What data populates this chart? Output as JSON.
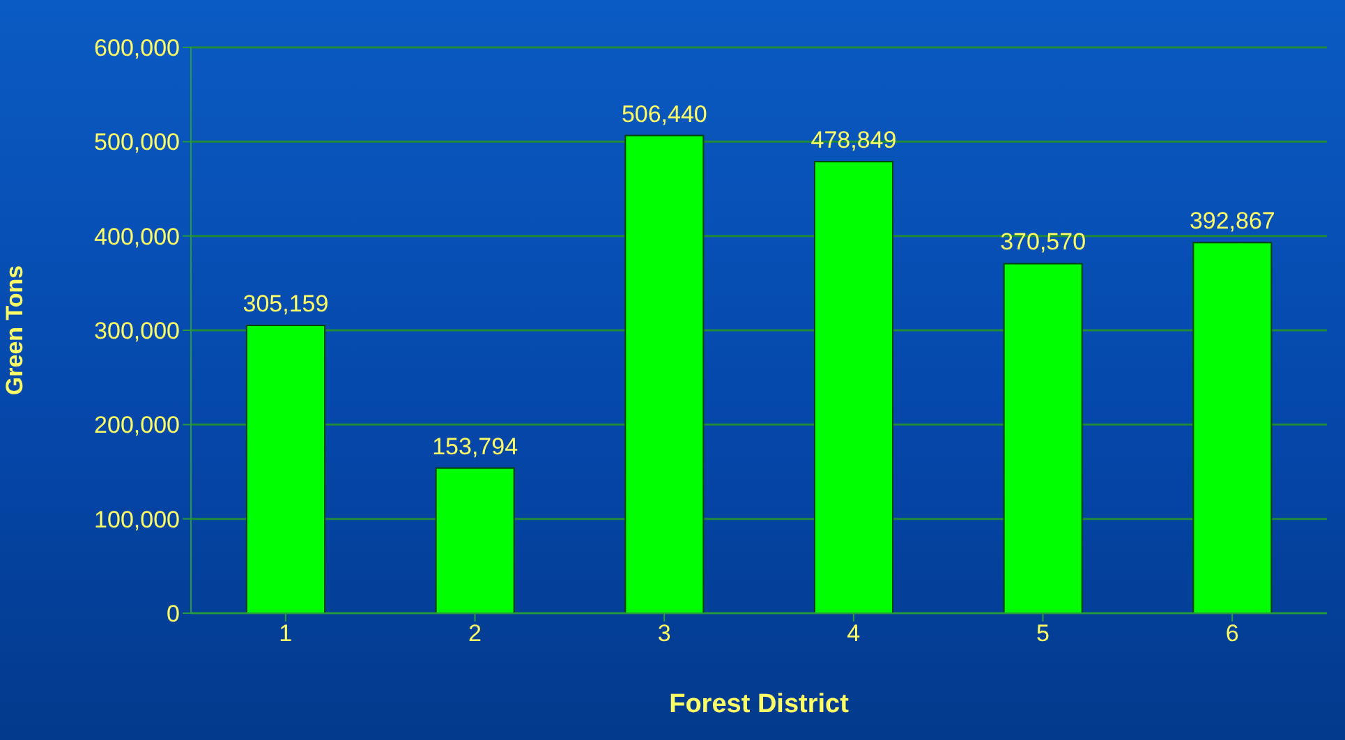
{
  "chart_data": {
    "type": "bar",
    "xlabel": "Forest District",
    "ylabel": "Green Tons",
    "categories": [
      "1",
      "2",
      "3",
      "4",
      "5",
      "6"
    ],
    "values": [
      305159,
      153794,
      506440,
      478849,
      370570,
      392867
    ],
    "value_labels": [
      "305,159",
      "153,794",
      "506,440",
      "478,849",
      "370,570",
      "392,867"
    ],
    "color": "#00ff00",
    "ylim": [
      0,
      600000
    ],
    "yticks": [
      0,
      {
        "value": 100000,
        "label": "100,000"
      },
      {
        "value": 200000,
        "label": "200,000"
      },
      {
        "value": 300000,
        "label": "300,000"
      },
      {
        "value": 400000,
        "label": "400,000"
      },
      {
        "value": 500000,
        "label": "500,000"
      },
      {
        "value": 600000,
        "label": "600,000"
      }
    ],
    "grid": "y",
    "legend": false
  }
}
